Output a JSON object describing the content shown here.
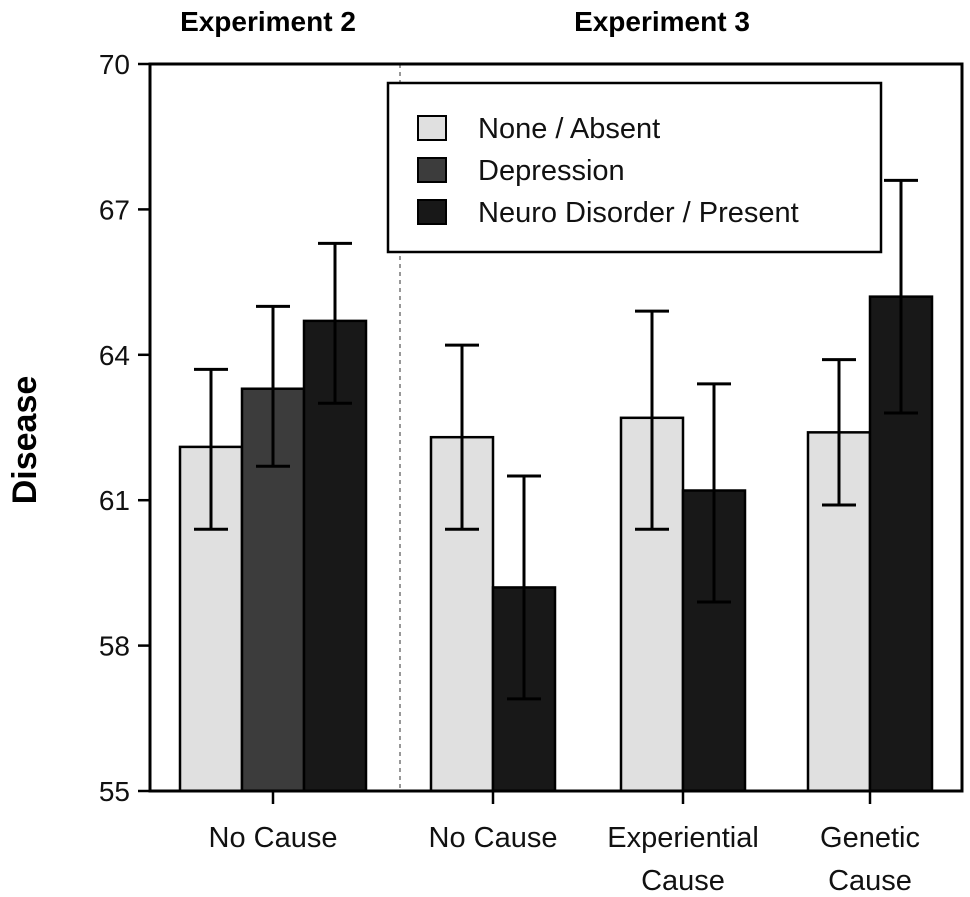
{
  "chart_data": {
    "type": "bar",
    "ylabel": "Disease",
    "xlabel": "",
    "ylim": [
      55,
      70
    ],
    "yticks": [
      55,
      58,
      61,
      64,
      67,
      70
    ],
    "grid": false,
    "legend_position": "top-right",
    "panels": [
      {
        "title": "Experiment 2"
      },
      {
        "title": "Experiment 3"
      }
    ],
    "legend": [
      {
        "name": "None / Absent",
        "color": "#e0e0e0"
      },
      {
        "name": "Depression",
        "color": "#3c3c3c"
      },
      {
        "name": "Neuro Disorder / Present",
        "color": "#181818"
      }
    ],
    "groups": [
      {
        "panel": 0,
        "label": [
          "No Cause"
        ],
        "bars": [
          {
            "series": "None / Absent",
            "value": 62.1,
            "err_low": 60.4,
            "err_high": 63.7
          },
          {
            "series": "Depression",
            "value": 63.3,
            "err_low": 61.7,
            "err_high": 65.0
          },
          {
            "series": "Neuro Disorder / Present",
            "value": 64.7,
            "err_low": 63.0,
            "err_high": 66.3
          }
        ]
      },
      {
        "panel": 1,
        "label": [
          "No Cause"
        ],
        "bars": [
          {
            "series": "None / Absent",
            "value": 62.3,
            "err_low": 60.4,
            "err_high": 64.2
          },
          {
            "series": "Neuro Disorder / Present",
            "value": 59.2,
            "err_low": 56.9,
            "err_high": 61.5
          }
        ]
      },
      {
        "panel": 1,
        "label": [
          "Experiential",
          "Cause"
        ],
        "bars": [
          {
            "series": "None / Absent",
            "value": 62.7,
            "err_low": 60.4,
            "err_high": 64.9
          },
          {
            "series": "Neuro Disorder / Present",
            "value": 61.2,
            "err_low": 58.9,
            "err_high": 63.4
          }
        ]
      },
      {
        "panel": 1,
        "label": [
          "Genetic",
          "Cause"
        ],
        "bars": [
          {
            "series": "None / Absent",
            "value": 62.4,
            "err_low": 60.9,
            "err_high": 63.9
          },
          {
            "series": "Neuro Disorder / Present",
            "value": 65.2,
            "err_low": 62.8,
            "err_high": 67.6
          }
        ]
      }
    ]
  }
}
